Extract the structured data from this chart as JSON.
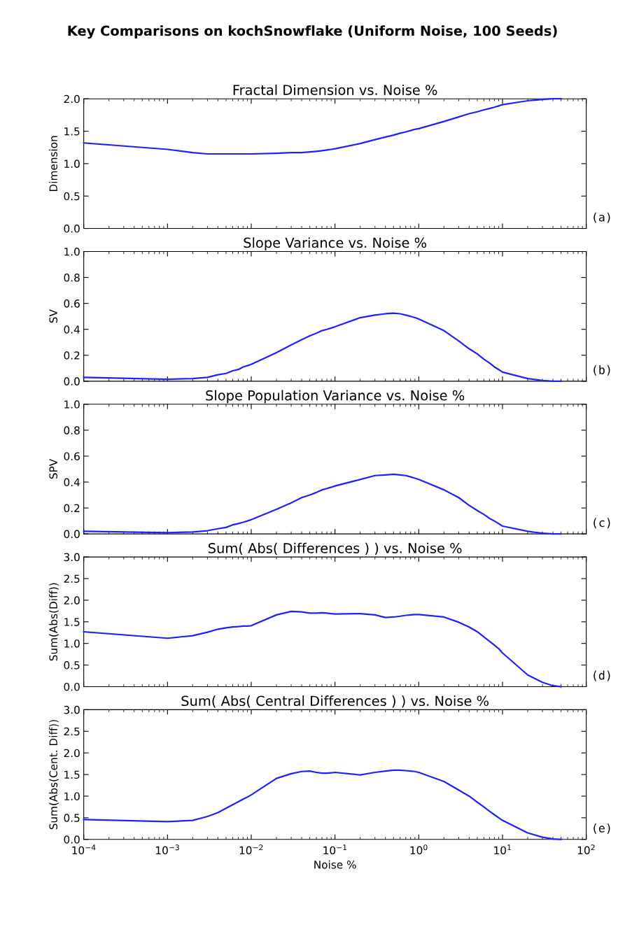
{
  "chart_data": [
    {
      "type": "line",
      "title": "Fractal Dimension vs. Noise %",
      "ylabel": "Dimension",
      "annotations": [
        "Key Comparisons on kochSnowflake (Uniform Noise, 100 Seeds)",
        "(a)"
      ],
      "x": [
        0.0001,
        0.001,
        0.002,
        0.003,
        0.004,
        0.005,
        0.006,
        0.007,
        0.008,
        0.009,
        0.01,
        0.02,
        0.03,
        0.04,
        0.05,
        0.06,
        0.07,
        0.08,
        0.09,
        0.1,
        0.2,
        0.3,
        0.4,
        0.5,
        0.6,
        0.7,
        0.8,
        0.9,
        1,
        2,
        3,
        4,
        5,
        6,
        7,
        8,
        9,
        10,
        20,
        30,
        40,
        50
      ],
      "series": [
        {
          "color": "#2020ff",
          "values": [
            1.32,
            1.22,
            1.17,
            1.15,
            1.15,
            1.15,
            1.15,
            1.15,
            1.15,
            1.15,
            1.15,
            1.16,
            1.17,
            1.17,
            1.18,
            1.19,
            1.2,
            1.21,
            1.22,
            1.23,
            1.31,
            1.37,
            1.41,
            1.44,
            1.47,
            1.49,
            1.51,
            1.53,
            1.54,
            1.65,
            1.72,
            1.77,
            1.8,
            1.83,
            1.85,
            1.87,
            1.89,
            1.91,
            1.97,
            1.99,
            2.0,
            2.0
          ]
        }
      ],
      "log": "x",
      "xlim": [
        0.0001,
        100
      ],
      "ylim": [
        0,
        2
      ],
      "yticks": [
        {
          "value": 0,
          "label": "0.0"
        },
        {
          "value": 0.5,
          "label": "0.5"
        },
        {
          "value": 1,
          "label": "1.0"
        },
        {
          "value": 1.5,
          "label": "1.5"
        },
        {
          "value": 2,
          "label": "2.0"
        }
      ],
      "tick_labels": "y",
      "grid": false,
      "legend": false,
      "marker": "none",
      "line_style": "solid"
    },
    {
      "type": "line",
      "title": "Slope Variance vs. Noise %",
      "ylabel": "SV",
      "annotations": [
        "(b)"
      ],
      "x": [
        0.0001,
        0.001,
        0.002,
        0.003,
        0.004,
        0.005,
        0.006,
        0.007,
        0.008,
        0.009,
        0.01,
        0.02,
        0.03,
        0.04,
        0.05,
        0.06,
        0.07,
        0.08,
        0.09,
        0.1,
        0.2,
        0.3,
        0.4,
        0.5,
        0.6,
        0.7,
        0.8,
        0.9,
        1,
        2,
        3,
        4,
        5,
        6,
        7,
        8,
        9,
        10,
        20,
        30,
        40,
        50
      ],
      "series": [
        {
          "color": "#2020ff",
          "values": [
            0.03,
            0.015,
            0.02,
            0.03,
            0.05,
            0.06,
            0.08,
            0.09,
            0.11,
            0.12,
            0.13,
            0.22,
            0.28,
            0.32,
            0.35,
            0.37,
            0.39,
            0.4,
            0.41,
            0.42,
            0.49,
            0.51,
            0.52,
            0.525,
            0.52,
            0.51,
            0.5,
            0.49,
            0.48,
            0.39,
            0.31,
            0.25,
            0.21,
            0.17,
            0.14,
            0.11,
            0.09,
            0.07,
            0.02,
            0.005,
            0,
            0
          ]
        }
      ],
      "log": "x",
      "xlim": [
        0.0001,
        100
      ],
      "ylim": [
        0,
        1
      ],
      "yticks": [
        {
          "value": 0,
          "label": "0.0"
        },
        0.2,
        0.4,
        0.6,
        0.8,
        {
          "value": 1,
          "label": "1.0"
        }
      ],
      "tick_labels": "y",
      "grid": false,
      "legend": false,
      "marker": "none",
      "line_style": "solid"
    },
    {
      "type": "line",
      "title": "Slope Population Variance vs. Noise %",
      "ylabel": "SPV",
      "annotations": [
        "(c)"
      ],
      "x": [
        0.0001,
        0.001,
        0.002,
        0.003,
        0.004,
        0.005,
        0.006,
        0.007,
        0.008,
        0.009,
        0.01,
        0.02,
        0.03,
        0.04,
        0.05,
        0.06,
        0.07,
        0.08,
        0.09,
        0.1,
        0.2,
        0.3,
        0.4,
        0.5,
        0.6,
        0.7,
        0.8,
        0.9,
        1,
        2,
        3,
        4,
        5,
        6,
        7,
        8,
        9,
        10,
        20,
        30,
        40,
        50
      ],
      "series": [
        {
          "color": "#2020ff",
          "values": [
            0.02,
            0.01,
            0.015,
            0.025,
            0.04,
            0.05,
            0.07,
            0.08,
            0.09,
            0.1,
            0.11,
            0.19,
            0.24,
            0.28,
            0.3,
            0.32,
            0.34,
            0.35,
            0.36,
            0.37,
            0.42,
            0.45,
            0.455,
            0.46,
            0.455,
            0.45,
            0.44,
            0.43,
            0.42,
            0.34,
            0.28,
            0.22,
            0.18,
            0.15,
            0.12,
            0.1,
            0.08,
            0.06,
            0.02,
            0.005,
            0,
            0
          ]
        }
      ],
      "log": "x",
      "xlim": [
        0.0001,
        100
      ],
      "ylim": [
        0,
        1
      ],
      "yticks": [
        {
          "value": 0,
          "label": "0.0"
        },
        0.2,
        0.4,
        0.6,
        0.8,
        {
          "value": 1,
          "label": "1.0"
        }
      ],
      "tick_labels": "y",
      "grid": false,
      "legend": false,
      "marker": "none",
      "line_style": "solid"
    },
    {
      "type": "line",
      "title": "Sum( Abs( Differences ) ) vs. Noise %",
      "ylabel": "Sum(Abs(Diff))",
      "annotations": [
        "(d)"
      ],
      "x": [
        0.0001,
        0.001,
        0.002,
        0.003,
        0.004,
        0.005,
        0.006,
        0.007,
        0.008,
        0.009,
        0.01,
        0.02,
        0.03,
        0.04,
        0.05,
        0.06,
        0.07,
        0.08,
        0.09,
        0.1,
        0.2,
        0.3,
        0.4,
        0.5,
        0.6,
        0.7,
        0.8,
        0.9,
        1,
        2,
        3,
        4,
        5,
        6,
        7,
        8,
        9,
        10,
        20,
        30,
        40,
        50
      ],
      "series": [
        {
          "color": "#2020ff",
          "values": [
            1.27,
            1.12,
            1.18,
            1.26,
            1.33,
            1.36,
            1.38,
            1.39,
            1.4,
            1.4,
            1.41,
            1.66,
            1.74,
            1.73,
            1.7,
            1.7,
            1.71,
            1.7,
            1.69,
            1.68,
            1.69,
            1.66,
            1.6,
            1.61,
            1.63,
            1.65,
            1.66,
            1.67,
            1.67,
            1.61,
            1.49,
            1.38,
            1.27,
            1.15,
            1.05,
            0.96,
            0.88,
            0.78,
            0.27,
            0.1,
            0.02,
            0
          ]
        }
      ],
      "log": "x",
      "xlim": [
        0.0001,
        100
      ],
      "ylim": [
        0,
        3
      ],
      "yticks": [
        {
          "value": 0,
          "label": "0.0"
        },
        0.5,
        {
          "value": 1,
          "label": "1.0"
        },
        1.5,
        {
          "value": 2,
          "label": "2.0"
        },
        2.5,
        {
          "value": 3,
          "label": "3.0"
        }
      ],
      "tick_labels": "y",
      "grid": false,
      "legend": false,
      "marker": "none",
      "line_style": "solid"
    },
    {
      "type": "line",
      "title": "Sum( Abs( Central Differences ) ) vs. Noise %",
      "ylabel": "Sum(Abs(Cent. Diff))",
      "xlabel": "Noise %",
      "annotations": [
        "(e)"
      ],
      "x": [
        0.0001,
        0.001,
        0.002,
        0.003,
        0.004,
        0.005,
        0.006,
        0.007,
        0.008,
        0.009,
        0.01,
        0.02,
        0.03,
        0.04,
        0.05,
        0.06,
        0.07,
        0.08,
        0.09,
        0.1,
        0.2,
        0.3,
        0.4,
        0.5,
        0.6,
        0.7,
        0.8,
        0.9,
        1,
        2,
        3,
        4,
        5,
        6,
        7,
        8,
        9,
        10,
        20,
        30,
        40,
        50
      ],
      "series": [
        {
          "color": "#2020ff",
          "values": [
            0.46,
            0.41,
            0.44,
            0.53,
            0.62,
            0.72,
            0.8,
            0.87,
            0.93,
            0.98,
            1.03,
            1.41,
            1.52,
            1.57,
            1.58,
            1.55,
            1.53,
            1.53,
            1.54,
            1.55,
            1.49,
            1.55,
            1.58,
            1.6,
            1.6,
            1.59,
            1.58,
            1.57,
            1.55,
            1.34,
            1.14,
            1.0,
            0.86,
            0.75,
            0.65,
            0.57,
            0.5,
            0.44,
            0.15,
            0.05,
            0.01,
            0
          ]
        }
      ],
      "log": "x",
      "xlim": [
        0.0001,
        100
      ],
      "xticks": [
        {
          "value": 0.0001,
          "label": "10$^{−4}$"
        },
        {
          "value": 0.001,
          "label": "10$^{−3}$"
        },
        {
          "value": 0.01,
          "label": "10$^{−2}$"
        },
        {
          "value": 0.1,
          "label": "10$^{−1}$"
        },
        {
          "value": 1,
          "label": "10$^{0}$"
        },
        {
          "value": 10,
          "label": "10$^{1}$"
        },
        {
          "value": 100,
          "label": "10$^{2}$"
        }
      ],
      "ylim": [
        0,
        3
      ],
      "yticks": [
        {
          "value": 0,
          "label": "0.0"
        },
        0.5,
        {
          "value": 1,
          "label": "1.0"
        },
        1.5,
        {
          "value": 2,
          "label": "2.0"
        },
        2.5,
        {
          "value": 3,
          "label": "3.0"
        }
      ],
      "grid": false,
      "legend": false,
      "marker": "none",
      "line_style": "solid"
    }
  ]
}
